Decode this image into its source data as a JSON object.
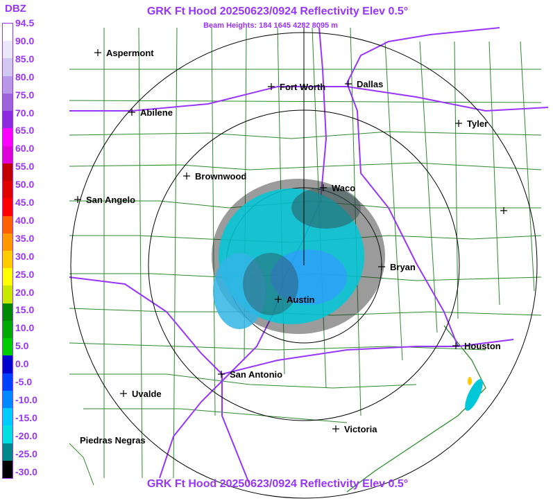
{
  "header": {
    "title": "GRK Ft Hood 20250623/0924 Reflectivity Elev 0.5°",
    "beam_heights": "Beam Heights: 184 1645 4282 8095 m",
    "footer_title": "GRK Ft Hood 20250623/0924 Reflectivity Elev 0.5°"
  },
  "legend": {
    "unit": "DBZ",
    "ticks": [
      "94.5",
      "90.0",
      "85.0",
      "80.0",
      "75.0",
      "70.0",
      "65.0",
      "60.0",
      "55.0",
      "50.0",
      "45.0",
      "40.0",
      "35.0",
      "30.0",
      "25.0",
      "20.0",
      "15.0",
      "10.0",
      "5.0",
      "0.0",
      "-5.0",
      "-10.0",
      "-15.0",
      "-20.0",
      "-25.0",
      "-30.0"
    ],
    "colors": [
      "#ffffff",
      "#e8e8f8",
      "#d0c8f0",
      "#b898e8",
      "#9d63dc",
      "#8a2be2",
      "#ff00ff",
      "#e000d8",
      "#c00000",
      "#e00000",
      "#ff0000",
      "#ff6000",
      "#ff9900",
      "#ffcc00",
      "#ffff00",
      "#c8e800",
      "#008800",
      "#00aa00",
      "#00cc00",
      "#0000cc",
      "#0040ff",
      "#0088ff",
      "#00ccff",
      "#00e0e0",
      "#008888",
      "#000000"
    ]
  },
  "map": {
    "cities": [
      {
        "name": "Aspermont"
      },
      {
        "name": "Fort Worth"
      },
      {
        "name": "Dallas"
      },
      {
        "name": "Abilene"
      },
      {
        "name": "Tyler"
      },
      {
        "name": "Brownwood"
      },
      {
        "name": "Waco"
      },
      {
        "name": "San Angelo"
      },
      {
        "name": "Bryan"
      },
      {
        "name": "Austin"
      },
      {
        "name": "Houston"
      },
      {
        "name": "San Antonio"
      },
      {
        "name": "Uvalde"
      },
      {
        "name": "Victoria"
      },
      {
        "name": "Piedras Negras"
      }
    ],
    "colors": {
      "title": "#9933ff",
      "highways": "#9933ff",
      "counties": "#008000",
      "range_rings": "#000000",
      "echo_light": "#00ccdd",
      "echo_mid": "#3399ff"
    }
  }
}
